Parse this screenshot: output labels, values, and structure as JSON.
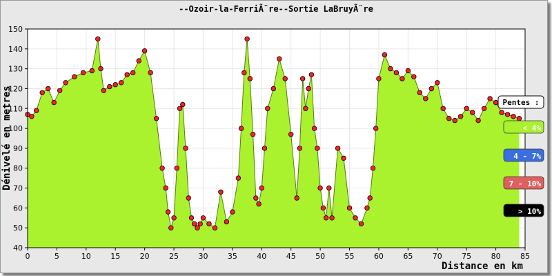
{
  "chart_data": {
    "type": "area",
    "title": "--Ozoir-la-FerriÃ¨re--Sortie LaBruyÃ¨re",
    "xlabel": "Distance en km",
    "ylabel": "Dénivelé en metres",
    "xlim": [
      0,
      85
    ],
    "ylim": [
      40,
      150
    ],
    "x_ticks": [
      0,
      5,
      10,
      15,
      20,
      25,
      30,
      35,
      40,
      45,
      50,
      55,
      60,
      65,
      70,
      75,
      80,
      85
    ],
    "y_ticks": [
      40,
      50,
      60,
      70,
      80,
      90,
      100,
      110,
      120,
      130,
      140,
      150
    ],
    "grid": true,
    "colors": {
      "fill": "#aaf22e",
      "marker": "#ff2020",
      "line": "#000000"
    },
    "legend": {
      "title": "Pentes :",
      "entries": [
        {
          "label": "< 4%",
          "color": "#aaf22e",
          "text_color": "#ffffff"
        },
        {
          "label": "4 - 7%",
          "color": "#3b6fe0",
          "text_color": "#ffffff"
        },
        {
          "label": "7 - 10%",
          "color": "#e06060",
          "text_color": "#ffffff"
        },
        {
          "label": "> 10%",
          "color": "#000000",
          "text_color": "#ffffff"
        }
      ]
    },
    "x": [
      0,
      0.7,
      1.5,
      2.5,
      3.5,
      4.5,
      5.5,
      6.5,
      8,
      9.5,
      11,
      12,
      12.5,
      13,
      14,
      15,
      16,
      17,
      18,
      19,
      20,
      21,
      22,
      23,
      23.6,
      24,
      24.5,
      25,
      25.5,
      26,
      26.5,
      27,
      27.5,
      28,
      28.5,
      29,
      29.5,
      30,
      31,
      32,
      33,
      34,
      35,
      36,
      36.5,
      37,
      37.5,
      38,
      38.5,
      39,
      39.5,
      40,
      40.5,
      41,
      42,
      43,
      44,
      45,
      46,
      46.5,
      47,
      47.5,
      48,
      48.5,
      49,
      49.5,
      50,
      50.5,
      51,
      51.5,
      52,
      53,
      54,
      55,
      56,
      57,
      58,
      58.5,
      59,
      59.5,
      60,
      61,
      62,
      63,
      64,
      65,
      66,
      67,
      68,
      69,
      70,
      71,
      72,
      73,
      74,
      75,
      76,
      77,
      78,
      79,
      80,
      81,
      82,
      83,
      84
    ],
    "values": [
      107,
      106,
      109,
      118,
      120,
      113,
      119,
      123,
      126,
      128,
      129,
      145,
      130,
      119,
      121,
      122,
      123,
      127,
      128,
      134,
      139,
      128,
      105,
      80,
      70,
      58,
      50,
      55,
      80,
      110,
      112,
      90,
      65,
      55,
      52,
      50,
      52,
      55,
      52,
      50,
      68,
      53,
      58,
      75,
      100,
      128,
      145,
      125,
      97,
      65,
      62,
      70,
      90,
      110,
      120,
      135,
      125,
      97,
      65,
      90,
      125,
      110,
      120,
      127,
      100,
      90,
      70,
      60,
      55,
      70,
      55,
      90,
      85,
      60,
      55,
      52,
      60,
      65,
      80,
      100,
      125,
      137,
      130,
      128,
      125,
      129,
      126,
      118,
      115,
      120,
      123,
      110,
      105,
      104,
      106,
      110,
      108,
      104,
      110,
      115,
      113,
      108,
      107,
      106,
      105
    ]
  }
}
